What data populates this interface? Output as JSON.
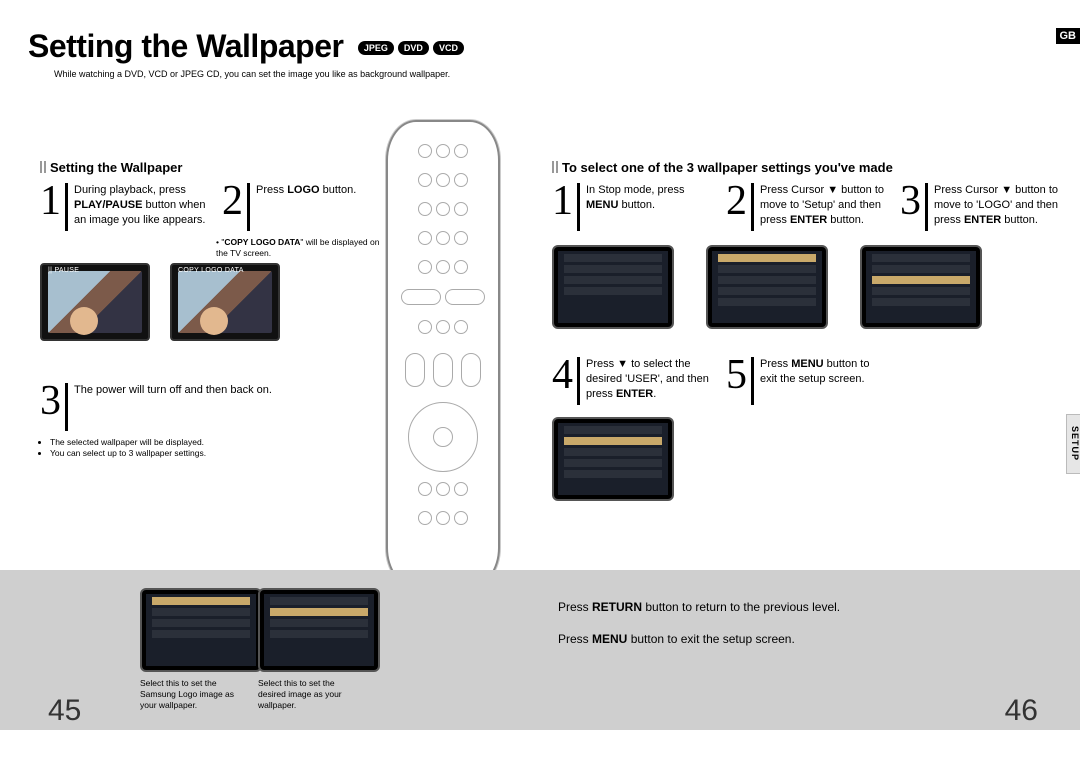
{
  "title": "Setting the Wallpaper",
  "formats": [
    "JPEG",
    "DVD",
    "VCD"
  ],
  "corner_tag": "GB",
  "subtitle": "While watching a DVD, VCD or JPEG CD, you can set the image you like as background wallpaper.",
  "left_heading": "Setting the Wallpaper",
  "right_heading": "To select one of the 3 wallpaper settings you've made",
  "left_steps": {
    "s1": "During playback, press <strong>PLAY/PAUSE</strong> button when an image you like appears.",
    "s2": "Press <strong>LOGO</strong> button.",
    "s2_note": "• \"<strong>COPY LOGO DATA</strong>\" will be displayed on the TV screen.",
    "thumb_label": "COPY LOGO DATA",
    "pause_label": "|| PAUSE",
    "s3": "The power will turn off and then back on.",
    "s3_notes": [
      "The selected wallpaper will be displayed.",
      "You can select up to 3 wallpaper settings."
    ]
  },
  "right_steps": {
    "s1": "In Stop mode, press <strong>MENU</strong> button.",
    "s2": "Press Cursor ▼ button to move to 'Setup' and then press <strong>ENTER</strong> button.",
    "s3": "Press Cursor ▼ button to move to 'LOGO' and then press <strong>ENTER</strong> button.",
    "s4": "Press ▼ to select the desired 'USER', and then press <strong>ENTER</strong>.",
    "s5": "Press <strong>MENU</strong> button to exit the setup screen."
  },
  "footer_thumbs": {
    "a": "Select this to set the Samsung Logo image as your wallpaper.",
    "b": "Select this to set the desired image as your wallpaper."
  },
  "hints": {
    "return": "Press <strong>RETURN</strong> button to return to the previous level.",
    "menu": "Press <strong>MENU</strong> button to exit the setup screen."
  },
  "side_tab": "SETUP",
  "page_left": "45",
  "page_right": "46",
  "colors": {
    "grey_band": "#cfcfcf",
    "text": "#000000",
    "thumb_bg": "#111111"
  }
}
